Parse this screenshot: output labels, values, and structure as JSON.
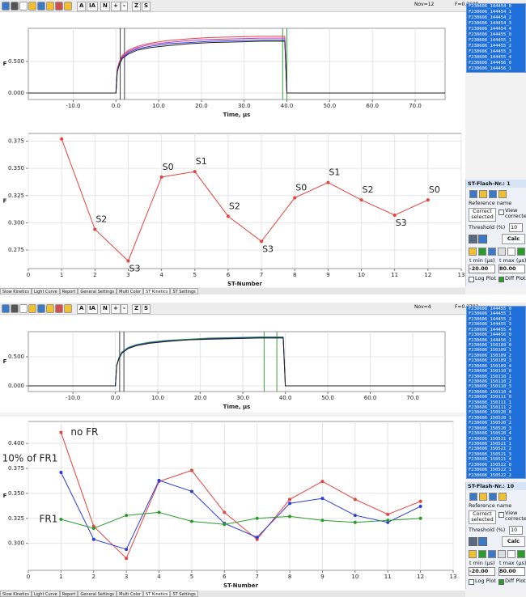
{
  "chart_data": [
    {
      "type": "line",
      "x_label": "Time, µs",
      "y_label": "F",
      "grid": true,
      "xlim": [
        -20.5,
        77
      ],
      "ylim": [
        -0.103,
        1.026
      ],
      "xticks": [
        {
          "value": -10,
          "label": "-10.0"
        },
        {
          "value": 0,
          "label": "0.0"
        },
        {
          "value": 10,
          "label": "10.0"
        },
        {
          "value": 20,
          "label": "20.0"
        },
        {
          "value": 30,
          "label": "30.0"
        },
        {
          "value": 40,
          "label": "40.0"
        },
        {
          "value": 50,
          "label": "50.0"
        },
        {
          "value": 60,
          "label": "60.0"
        },
        {
          "value": 70,
          "label": "70.0"
        }
      ],
      "yticks": [
        {
          "value": 0,
          "label": "0.000"
        },
        {
          "value": 0.5,
          "label": "0.500"
        }
      ],
      "x": [
        -20.5,
        0,
        0.3,
        0.8,
        1.5,
        3,
        5,
        8,
        12,
        17,
        22,
        28,
        34,
        39.5,
        40,
        77
      ],
      "series": [
        {
          "color": "#e8413c",
          "values": [
            0,
            0,
            0.38,
            0.5,
            0.6,
            0.68,
            0.74,
            0.79,
            0.83,
            0.86,
            0.88,
            0.89,
            0.9,
            0.9,
            0,
            0
          ]
        },
        {
          "color": "#c030c0",
          "values": [
            0,
            0,
            0.36,
            0.48,
            0.58,
            0.66,
            0.72,
            0.77,
            0.8,
            0.83,
            0.85,
            0.86,
            0.87,
            0.87,
            0,
            0
          ]
        },
        {
          "color": "#2a3cd8",
          "values": [
            0,
            0,
            0.34,
            0.46,
            0.56,
            0.64,
            0.7,
            0.74,
            0.78,
            0.8,
            0.82,
            0.83,
            0.84,
            0.84,
            0,
            0
          ]
        },
        {
          "color": "#202020",
          "values": [
            0,
            0,
            0.33,
            0.45,
            0.55,
            0.62,
            0.68,
            0.72,
            0.75,
            0.78,
            0.8,
            0.81,
            0.82,
            0.82,
            0,
            0
          ]
        }
      ],
      "cursors": [
        {
          "value": 1,
          "color": "#404040"
        },
        {
          "value": 2,
          "color": "#404040"
        },
        {
          "value": 39,
          "color": "#3c9c3c"
        },
        {
          "value": 40,
          "color": "#3c9c3c"
        }
      ]
    },
    {
      "type": "line",
      "x_label": "ST-Number",
      "y_label": "F",
      "grid": true,
      "point_markers": true,
      "xlim": [
        0,
        13
      ],
      "ylim": [
        0.258,
        0.382
      ],
      "xticks": [
        0,
        1,
        2,
        3,
        4,
        5,
        6,
        7,
        8,
        9,
        10,
        11,
        12,
        13
      ],
      "yticks": [
        0.275,
        {
          "value": 0.3,
          "label": "0.300"
        },
        0.325,
        {
          "value": 0.35,
          "label": "0.350"
        },
        0.375
      ],
      "x": [
        1,
        2,
        3,
        4,
        5,
        6,
        7,
        8,
        9,
        10,
        11,
        12
      ],
      "series": [
        {
          "color": "#e8413c",
          "values": [
            0.377,
            0.294,
            0.265,
            0.342,
            0.347,
            0.306,
            0.283,
            0.323,
            0.337,
            0.321,
            0.307,
            0.321
          ],
          "point_labels": [
            null,
            "S2",
            "S3",
            "S0",
            "S1",
            "S2",
            "S3",
            "S0",
            "S1",
            "S2",
            "S3",
            "S0"
          ]
        }
      ]
    },
    {
      "type": "line",
      "x_label": "Time, µs",
      "y_label": "F",
      "grid": true,
      "xlim": [
        -20.5,
        77.6
      ],
      "ylim": [
        -0.097,
        0.93
      ],
      "xticks": [
        {
          "value": -10,
          "label": "-10.0"
        },
        {
          "value": 0,
          "label": "0.0"
        },
        {
          "value": 10,
          "label": "10.0"
        },
        {
          "value": 20,
          "label": "20.0"
        },
        {
          "value": 30,
          "label": "30.0"
        },
        {
          "value": 40,
          "label": "40.0"
        },
        {
          "value": 50,
          "label": "50.0"
        },
        {
          "value": 60,
          "label": "60.0"
        },
        {
          "value": 70,
          "label": "70.0"
        }
      ],
      "yticks": [
        {
          "value": 0,
          "label": "0.000"
        },
        {
          "value": 0.5,
          "label": "0.500"
        }
      ],
      "x": [
        -20.5,
        0,
        0.3,
        0.8,
        1.5,
        3,
        5,
        8,
        12,
        17,
        22,
        28,
        34,
        39.5,
        40,
        77.6
      ],
      "series": [
        {
          "color": "#2a9c2a",
          "values": [
            0,
            0,
            0.36,
            0.48,
            0.58,
            0.66,
            0.71,
            0.75,
            0.78,
            0.8,
            0.82,
            0.83,
            0.84,
            0.84,
            0,
            0
          ]
        },
        {
          "color": "#2a3cd8",
          "values": [
            0,
            0,
            0.35,
            0.47,
            0.57,
            0.65,
            0.7,
            0.74,
            0.77,
            0.79,
            0.81,
            0.82,
            0.83,
            0.83,
            0,
            0
          ]
        },
        {
          "color": "#202020",
          "values": [
            0,
            0,
            0.34,
            0.46,
            0.56,
            0.64,
            0.69,
            0.73,
            0.76,
            0.79,
            0.8,
            0.81,
            0.82,
            0.82,
            0,
            0
          ]
        }
      ],
      "cursors": [
        {
          "value": 1,
          "color": "#404040"
        },
        {
          "value": 2,
          "color": "#404040"
        },
        {
          "value": 35,
          "color": "#3c9c3c"
        },
        {
          "value": 38,
          "color": "#3c9c3c"
        }
      ]
    },
    {
      "type": "line",
      "x_label": "ST-Number",
      "y_label": "F",
      "grid": true,
      "point_markers": true,
      "xlim": [
        0,
        13
      ],
      "ylim": [
        0.273,
        0.422
      ],
      "xticks": [
        0,
        1,
        2,
        3,
        4,
        5,
        6,
        7,
        8,
        9,
        10,
        11,
        12,
        13
      ],
      "yticks": [
        {
          "value": 0.3,
          "label": "0.300"
        },
        0.325,
        {
          "value": 0.35,
          "label": "0.350"
        },
        0.375,
        {
          "value": 0.4,
          "label": "0.400"
        }
      ],
      "x": [
        1,
        2,
        3,
        4,
        5,
        6,
        7,
        8,
        9,
        10,
        11,
        12
      ],
      "series": [
        {
          "name": "no FR",
          "color": "#e8413c",
          "values": [
            0.411,
            0.317,
            0.285,
            0.362,
            0.373,
            0.331,
            0.304,
            0.344,
            0.362,
            0.344,
            0.329,
            0.342
          ]
        },
        {
          "name": "10% of FR1",
          "color": "#2a3cd8",
          "values": [
            0.371,
            0.304,
            0.294,
            0.363,
            0.352,
            0.32,
            0.306,
            0.34,
            0.345,
            0.328,
            0.321,
            0.337
          ]
        },
        {
          "name": "FR1",
          "color": "#2a9c2a",
          "values": [
            0.324,
            0.315,
            0.328,
            0.331,
            0.322,
            0.319,
            0.325,
            0.327,
            0.323,
            0.321,
            0.323,
            0.325
          ]
        }
      ]
    }
  ],
  "windows": [
    {
      "toolbar": {
        "buttons": [
          "A",
          "IA",
          "N",
          "+",
          "-",
          "Z",
          "S"
        ],
        "status": [
          "Nov=12",
          "F=0.3609"
        ]
      },
      "files": [
        "F230606_144454_0",
        "F230606_144454_1",
        "F230606_144454_2",
        "F230606_144454_3",
        "F230606_144454_4",
        "F230606_144455_0",
        "F230606_144455_1",
        "F230606_144455_2",
        "F230606_144455_3",
        "F230606_144455_4",
        "F230606_144456_0",
        "F230606_144456_1"
      ],
      "panel": {
        "title": "ST-Flash-Nr.: 1",
        "reference": "Reference name",
        "correct": "Correct selected",
        "view": "View corrected",
        "threshold_label": "Threshold (%)",
        "threshold": "10",
        "calc": "Calc",
        "tmin_label": "t min (µs)",
        "tmax_label": "t max (µs)",
        "tmin": "-20.00",
        "tmax": "80.00",
        "log": "Log Plot",
        "diff": "Diff Plot"
      },
      "tabs": [
        "Slow Kinetics",
        "Light Curve",
        "Report",
        "General Settings",
        "Multi Color",
        "ST Kinetics",
        "ST Settings"
      ]
    },
    {
      "toolbar": {
        "buttons": [
          "A",
          "IA",
          "N",
          "+",
          "-",
          "Z",
          "S"
        ],
        "status": [
          "Nov=4",
          "F=0.2783"
        ]
      },
      "files": [
        "F230606_144455_0",
        "F230606_144455_1",
        "F230606_144455_2",
        "F230606_144455_3",
        "F230606_144455_4",
        "F230606_144456_0",
        "F230606_144456_1",
        "F230606_150109_0",
        "F230606_150109_1",
        "F230606_150109_2",
        "F230606_150109_3",
        "F230606_150109_4",
        "F230606_150110_0",
        "F230606_150110_1",
        "F230606_150110_2",
        "F230606_150110_3",
        "F230606_150110_4",
        "F230606_150111_0",
        "F230606_150111_1",
        "F230606_150111_2",
        "F230606_150520_0",
        "F230606_150520_1",
        "F230606_150520_2",
        "F230606_150520_3",
        "F230606_150520_4",
        "F230606_150521_0",
        "F230606_150521_1",
        "F230606_150521_2",
        "F230606_150521_3",
        "F230606_150521_4",
        "F230606_150522_0",
        "F230606_150522_1",
        "F230606_150522_2"
      ],
      "panel": {
        "title": "ST-Flash-Nr.: 10",
        "reference": "Reference name",
        "correct": "Correct selected",
        "view": "View corrected",
        "threshold_label": "Threshold (%)",
        "threshold": "10",
        "calc": "Calc",
        "tmin_label": "t min (µs)",
        "tmax_label": "t max (µs)",
        "tmin": "-20.00",
        "tmax": "80.00",
        "log": "Log Plot",
        "diff": "Diff Plot"
      },
      "tabs": [
        "Slow Kinetics",
        "Light Curve",
        "Report",
        "General Settings",
        "Multi Color",
        "ST Kinetics",
        "ST Settings"
      ]
    }
  ]
}
